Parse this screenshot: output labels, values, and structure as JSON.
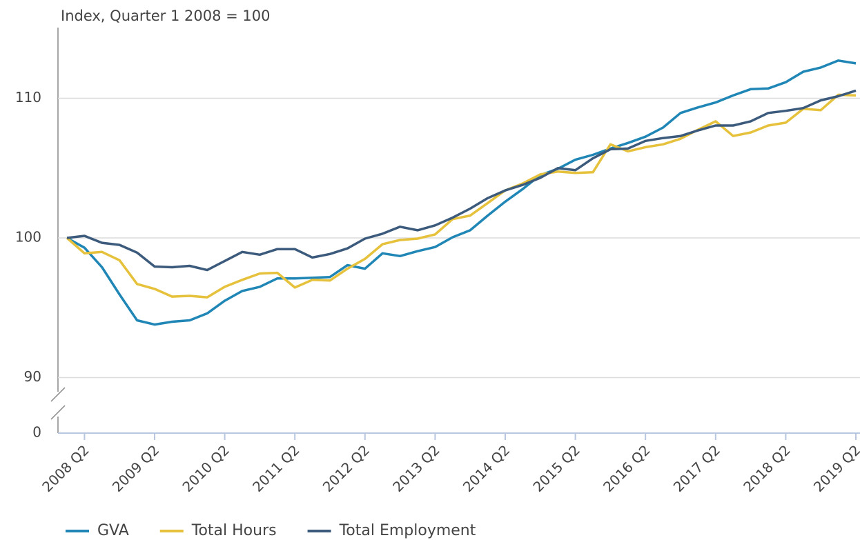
{
  "chart_data": {
    "type": "line",
    "y_label": "Index, Quarter 1 2008 = 100",
    "categories": [
      null,
      "2008 Q2",
      null,
      null,
      null,
      "2009 Q2",
      null,
      null,
      null,
      "2010 Q2",
      null,
      null,
      null,
      "2011 Q2",
      null,
      null,
      null,
      "2012 Q2",
      null,
      null,
      null,
      "2013 Q2",
      null,
      null,
      null,
      "2014 Q2",
      null,
      null,
      null,
      "2015 Q2",
      null,
      null,
      null,
      "2016 Q2",
      null,
      null,
      null,
      "2017 Q2",
      null,
      null,
      null,
      "2018 Q2",
      null,
      null,
      null,
      "2019 Q2"
    ],
    "series": [
      {
        "name": "GVA",
        "color": "#1f86b5",
        "values": [
          100,
          99.3,
          97.9,
          95.95,
          94.1,
          93.8,
          94.0,
          94.1,
          94.6,
          95.5,
          96.2,
          96.5,
          97.1,
          97.1,
          97.15,
          97.2,
          98.05,
          97.8,
          98.9,
          98.7,
          99.05,
          99.35,
          100.05,
          100.55,
          101.6,
          102.6,
          103.5,
          104.5,
          104.95,
          105.6,
          105.95,
          106.4,
          106.8,
          107.25,
          107.9,
          108.95,
          109.35,
          109.7,
          110.2,
          110.65,
          110.7,
          111.15,
          111.9,
          112.2,
          112.7,
          112.5
        ]
      },
      {
        "name": "Total Hours",
        "color": "#e6c13b",
        "values": [
          100,
          98.9,
          99,
          98.4,
          96.7,
          96.35,
          95.8,
          95.85,
          95.75,
          96.5,
          97,
          97.45,
          97.5,
          96.45,
          97,
          96.95,
          97.8,
          98.5,
          99.55,
          99.85,
          99.95,
          100.25,
          101.35,
          101.6,
          102.5,
          103.4,
          103.9,
          104.55,
          104.75,
          104.65,
          104.7,
          106.7,
          106.2,
          106.5,
          106.7,
          107.1,
          107.75,
          108.35,
          107.3,
          107.55,
          108.05,
          108.25,
          109.25,
          109.15,
          110.25,
          110.2
        ]
      },
      {
        "name": "Total Employment",
        "color": "#3b5a7c",
        "values": [
          100,
          100.15,
          99.65,
          99.5,
          98.95,
          97.95,
          97.9,
          98.0,
          97.7,
          98.35,
          99,
          98.8,
          99.2,
          99.2,
          98.6,
          98.85,
          99.25,
          99.95,
          100.3,
          100.8,
          100.55,
          100.9,
          101.45,
          102.1,
          102.85,
          103.4,
          103.8,
          104.3,
          105.0,
          104.85,
          105.7,
          106.35,
          106.4,
          106.95,
          107.15,
          107.3,
          107.7,
          108.05,
          108.05,
          108.35,
          108.95,
          109.1,
          109.3,
          109.85,
          110.15,
          110.55
        ]
      }
    ],
    "ylim": [
      0,
      115
    ],
    "y_break": [
      0,
      89
    ],
    "yticks": [
      0,
      90,
      100,
      110
    ],
    "grid": true,
    "legend": "bottom"
  }
}
